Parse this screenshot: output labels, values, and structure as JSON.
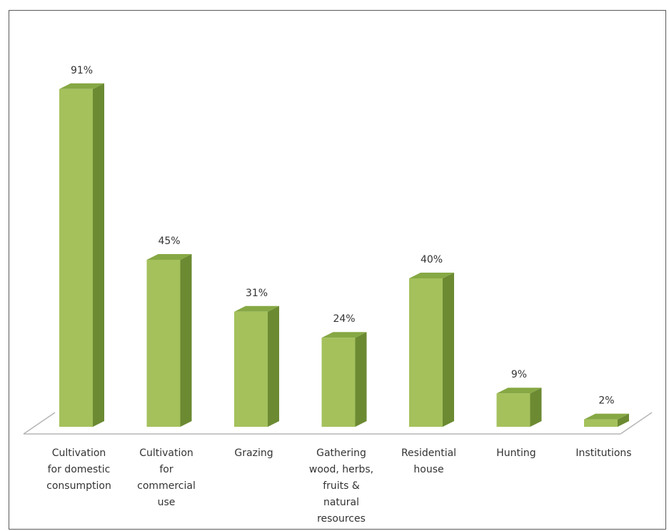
{
  "chart_data": {
    "type": "bar",
    "title": "",
    "xlabel": "",
    "ylabel": "",
    "categories": [
      "Cultivation for domestic consumption",
      "Cultivation for commercial use",
      "Grazing",
      "Gathering wood, herbs, fruits & natural resources",
      "Residential house",
      "Hunting",
      "Institutions"
    ],
    "category_lines": [
      [
        "Cultivation",
        "for domestic",
        "consumption"
      ],
      [
        "Cultivation",
        "for",
        "commercial",
        "use"
      ],
      [
        "Grazing"
      ],
      [
        "Gathering",
        "wood, herbs,",
        "fruits &",
        "natural",
        "resources"
      ],
      [
        "Residential",
        "house"
      ],
      [
        "Hunting"
      ],
      [
        "Institutions"
      ]
    ],
    "values": [
      91,
      45,
      31,
      24,
      40,
      9,
      2
    ],
    "value_labels": [
      "91%",
      "45%",
      "31%",
      "24%",
      "40%",
      "9%",
      "2%"
    ],
    "ylim": [
      0,
      100
    ],
    "grid": false,
    "legend": "none",
    "colors": {
      "bar_front": "#a4c15c",
      "bar_side": "#6b8a32",
      "bar_top": "#86a844",
      "floor_line": "#b5b5b5",
      "frame": "#5a5a5a"
    }
  }
}
